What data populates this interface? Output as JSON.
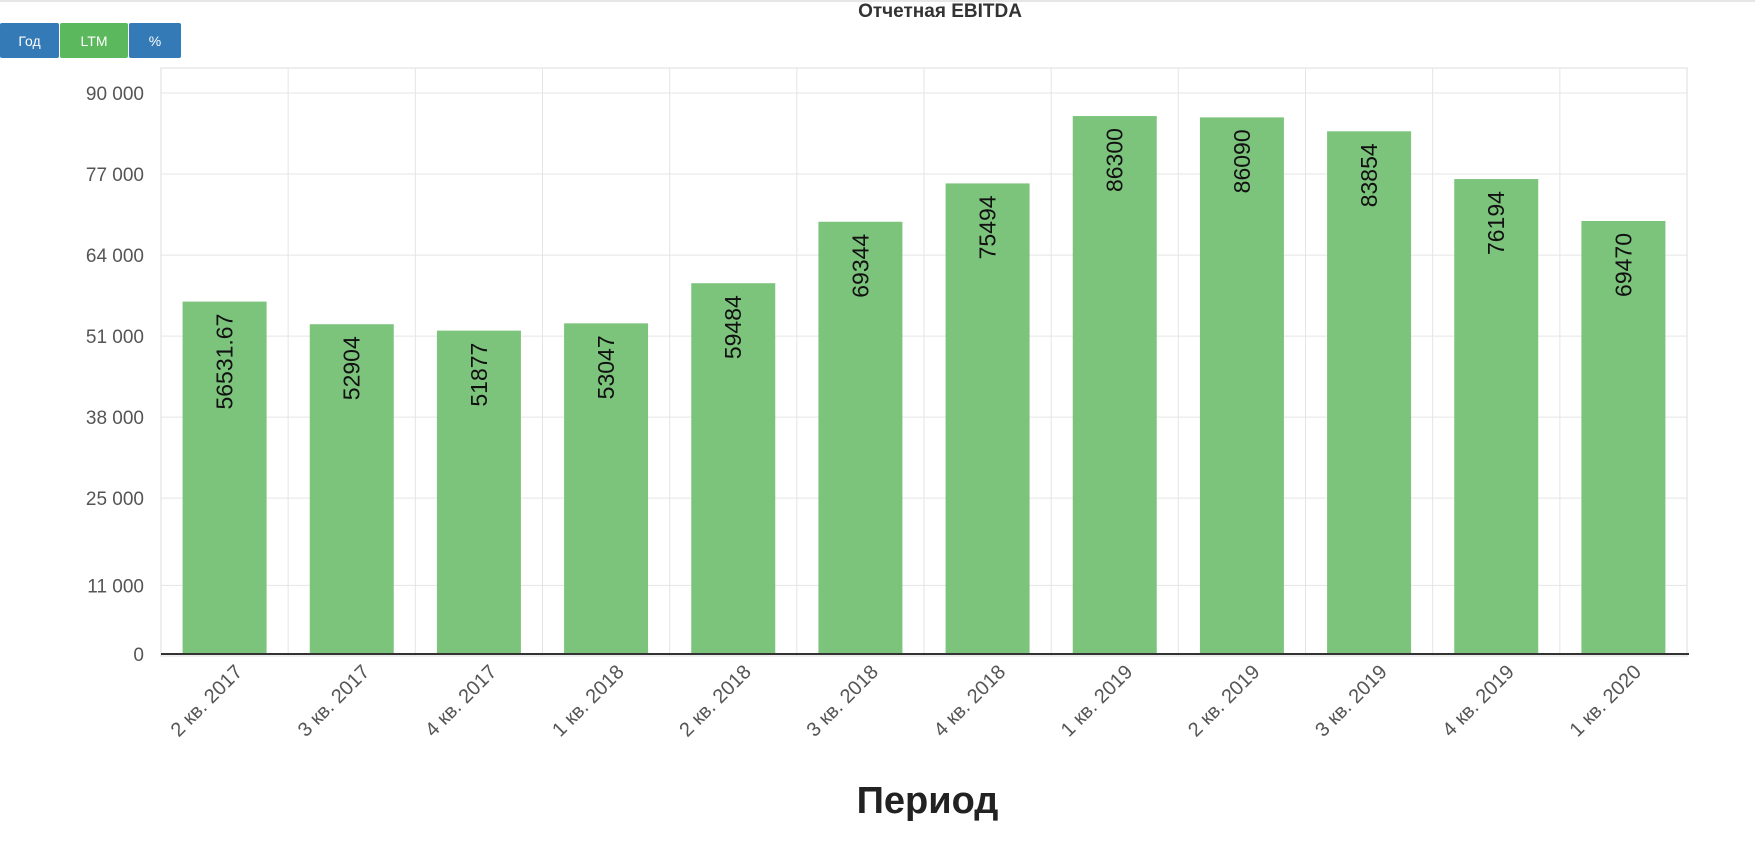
{
  "toolbar": {
    "buttons": [
      {
        "label": "Год",
        "color": "#337ab7"
      },
      {
        "label": "LTM",
        "color": "#5cb85c"
      },
      {
        "label": "%",
        "color": "#337ab7"
      }
    ]
  },
  "chart_data": {
    "type": "bar",
    "title": "Отчетная EBITDA",
    "xlabel": "Период",
    "ylabel": "",
    "categories": [
      "2 кв. 2017",
      "3 кв. 2017",
      "4 кв. 2017",
      "1 кв. 2018",
      "2 кв. 2018",
      "3 кв. 2018",
      "4 кв. 2018",
      "1 кв. 2019",
      "2 кв. 2019",
      "3 кв. 2019",
      "4 кв. 2019",
      "1 кв. 2020"
    ],
    "values": [
      56531.67,
      52904,
      51877,
      53047,
      59484,
      69344,
      75494,
      86300,
      86090,
      83854,
      76194,
      69470
    ],
    "data_labels": [
      "56531.67",
      "52904",
      "51877",
      "53047",
      "59484",
      "69344",
      "75494",
      "86300",
      "86090",
      "83854",
      "76194",
      "69470"
    ],
    "y_ticks": [
      0,
      11000,
      25000,
      38000,
      51000,
      64000,
      77000,
      90000
    ],
    "y_tick_labels": [
      "0",
      "11 000",
      "25 000",
      "38 000",
      "51 000",
      "64 000",
      "77 000",
      "90 000"
    ],
    "ylim": [
      0,
      90000
    ],
    "grid": true,
    "bar_color": "#7cc37c"
  }
}
